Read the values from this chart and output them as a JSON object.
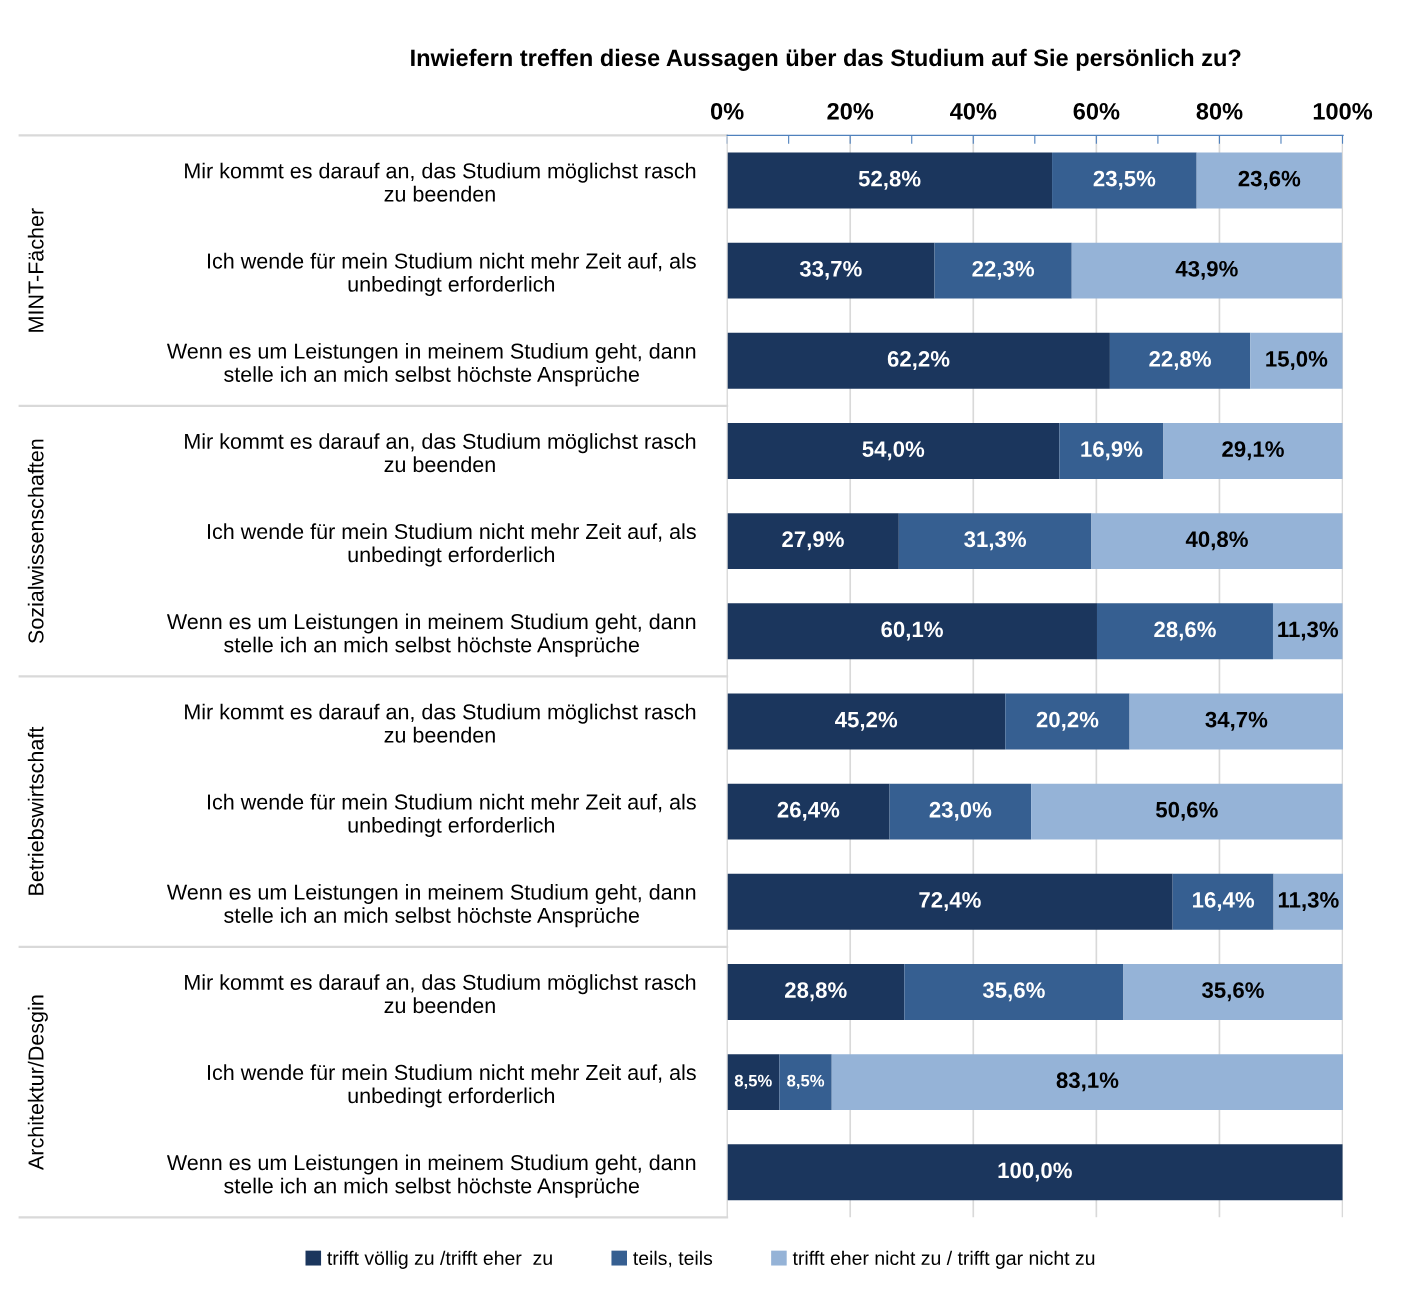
{
  "chart_data": {
    "type": "bar",
    "orientation": "horizontal",
    "stacked": true,
    "title": "Inwiefern treffen diese Aussagen über das Studium auf Sie persönlich zu?",
    "categories": [
      "Mir kommt es darauf an, das Studium möglichst rasch\nzu beenden",
      "Ich wende für mein Studium nicht mehr Zeit auf, als\nunbedingt erforderlich",
      "Wenn es um Leistungen in meinem Studium geht, dann\nstelle ich an mich selbst höchste Ansprüche",
      "Mir kommt es darauf an, das Studium möglichst rasch\nzu beenden",
      "Ich wende für mein Studium nicht mehr Zeit auf, als\nunbedingt erforderlich",
      "Wenn es um Leistungen in meinem Studium geht, dann\nstelle ich an mich selbst höchste Ansprüche",
      "Mir kommt es darauf an, das Studium möglichst rasch\nzu beenden",
      "Ich wende für mein Studium nicht mehr Zeit auf, als\nunbedingt erforderlich",
      "Wenn es um Leistungen in meinem Studium geht, dann\nstelle ich an mich selbst höchste Ansprüche",
      "Mir kommt es darauf an, das Studium möglichst rasch\nzu beenden",
      "Ich wende für mein Studium nicht mehr Zeit auf, als\nunbedingt erforderlich",
      "Wenn es um Leistungen in meinem Studium geht, dann\nstelle ich an mich selbst höchste Ansprüche"
    ],
    "annotations": [
      "MINT-Fächer",
      "Sozialwissenschaften",
      "Betriebswirtschaft",
      "Architektur/Desgin"
    ],
    "series": [
      {
        "name": "trifft völlig zu /trifft eher  zu",
        "color": "#1b365d",
        "values": [
          52.8,
          33.7,
          62.2,
          54.0,
          27.9,
          60.1,
          45.2,
          26.4,
          72.4,
          28.8,
          8.5,
          100.0
        ],
        "value_labels": [
          "52,8%",
          "33,7%",
          "62,2%",
          "54,0%",
          "27,9%",
          "60,1%",
          "45,2%",
          "26,4%",
          "72,4%",
          "28,8%",
          "8,5%",
          "100,0%"
        ]
      },
      {
        "name": "teils, teils",
        "color": "#365f91",
        "values": [
          23.5,
          22.3,
          22.8,
          16.9,
          31.3,
          28.6,
          20.2,
          23.0,
          16.4,
          35.6,
          8.5,
          null
        ],
        "value_labels": [
          "23,5%",
          "22,3%",
          "22,8%",
          "16,9%",
          "31,3%",
          "28,6%",
          "20,2%",
          "23,0%",
          "16,4%",
          "35,6%",
          "8,5%",
          null
        ]
      },
      {
        "name": "trifft eher nicht zu / trifft gar nicht zu",
        "color": "#95b3d7",
        "values": [
          23.6,
          43.9,
          15.0,
          29.1,
          40.8,
          11.3,
          34.7,
          50.6,
          11.3,
          35.6,
          83.1,
          null
        ],
        "value_labels": [
          "23,6%",
          "43,9%",
          "15,0%",
          "29,1%",
          "40,8%",
          "11,3%",
          "34,7%",
          "50,6%",
          "11,3%",
          "35,6%",
          "83,1%",
          null
        ]
      }
    ],
    "xlim": [
      0,
      100.1
    ],
    "xticks": [
      {
        "value": 0,
        "label": "0%"
      },
      {
        "value": 10,
        "label": null
      },
      {
        "value": 20,
        "label": "20%"
      },
      {
        "value": 30,
        "label": null
      },
      {
        "value": 40,
        "label": "40%"
      },
      {
        "value": 50,
        "label": null
      },
      {
        "value": 60,
        "label": "60%"
      },
      {
        "value": 70,
        "label": null
      },
      {
        "value": 80,
        "label": "80%"
      },
      {
        "value": 90,
        "label": null
      },
      {
        "value": 100,
        "label": "100%"
      }
    ],
    "grid": "x",
    "legend": "bottom"
  }
}
